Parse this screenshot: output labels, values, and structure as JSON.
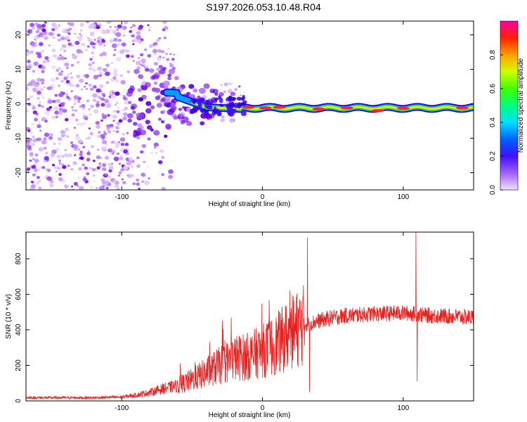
{
  "title": "S197.2026.053.10.48.R04",
  "chart_data": [
    {
      "type": "heatmap",
      "xlabel": "Height of straight line (km)",
      "ylabel": "Frequency (Hz)",
      "xlim": [
        -168,
        150
      ],
      "ylim": [
        -25,
        24
      ],
      "xticks": [
        "-100",
        "0",
        "100"
      ],
      "xtick_values": [
        -100,
        0,
        100
      ],
      "yticks": [
        "-20",
        "-10",
        "0",
        "10",
        "20"
      ],
      "ytick_values": [
        -20,
        -10,
        0,
        10,
        20
      ],
      "colorbar": {
        "label": "Normalized spectral amplitude",
        "range": [
          0,
          1
        ],
        "ticks": [
          "0.0",
          "0.2",
          "0.4",
          "0.6",
          "0.8"
        ],
        "tick_values": [
          0,
          0.2,
          0.4,
          0.6,
          0.8
        ]
      },
      "colors": {
        "low": "#e9ccff",
        "mid1": "#5500dd",
        "mid2": "#00c8ff",
        "mid3": "#30e030",
        "high": "#ff2050"
      }
    },
    {
      "type": "line",
      "xlabel": "Height of straight line (km)",
      "ylabel": "SNR (10 * v/v)",
      "xlim": [
        -168,
        150
      ],
      "ylim": [
        0,
        950
      ],
      "xticks": [
        "-100",
        "0",
        "100"
      ],
      "xtick_values": [
        -100,
        0,
        100
      ],
      "yticks": [
        "0",
        "200",
        "400",
        "600",
        "800"
      ],
      "ytick_values": [
        0,
        200,
        400,
        600,
        800
      ],
      "color": "#e82020",
      "series_envelope": {
        "x": [
          -168,
          -120,
          -100,
          -90,
          -80,
          -70,
          -60,
          -50,
          -40,
          -30,
          -20,
          -10,
          0,
          10,
          20,
          30,
          40,
          50,
          60,
          80,
          100,
          120,
          150
        ],
        "y": [
          18,
          18,
          22,
          32,
          48,
          70,
          85,
          120,
          160,
          200,
          240,
          250,
          280,
          320,
          380,
          430,
          450,
          470,
          480,
          490,
          495,
          480,
          470
        ]
      },
      "spikes": [
        {
          "x": 32,
          "y": 920
        },
        {
          "x": 33.5,
          "y": 50
        },
        {
          "x": 109,
          "y": 950
        },
        {
          "x": 110,
          "y": 110
        }
      ]
    }
  ]
}
